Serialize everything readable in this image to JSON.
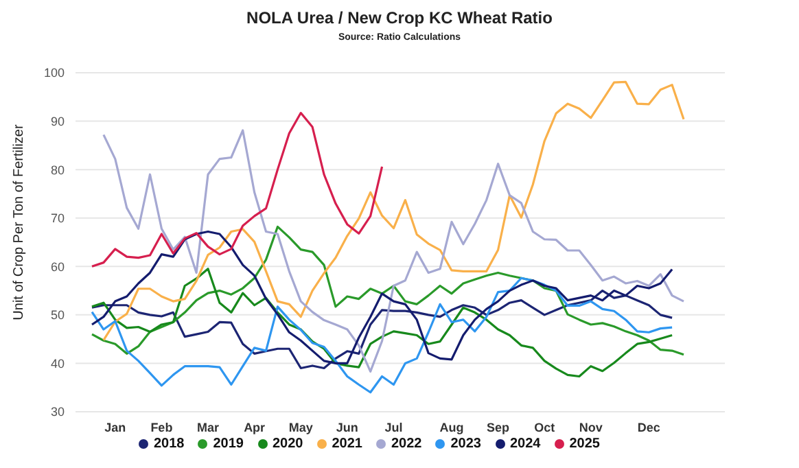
{
  "chart_data": {
    "type": "line",
    "title": "NOLA Urea / New Crop KC Wheat Ratio",
    "subtitle": "Source: Ratio Calculations",
    "ylabel": "Unit of Crop Per Ton of Fertilizer",
    "categories": [
      null,
      null,
      "Jan",
      null,
      null,
      null,
      "Feb",
      null,
      null,
      null,
      "Mar",
      null,
      null,
      null,
      "Apr",
      null,
      null,
      null,
      "May",
      null,
      null,
      null,
      "Jun",
      null,
      null,
      null,
      "Jul",
      null,
      null,
      null,
      null,
      "Aug",
      null,
      null,
      null,
      "Sep",
      null,
      null,
      null,
      "Oct",
      null,
      null,
      null,
      "Nov",
      null,
      null,
      null,
      null,
      "Dec",
      null,
      null,
      null
    ],
    "ylim": [
      30,
      100
    ],
    "yticks": [
      30,
      40,
      50,
      60,
      70,
      80,
      90,
      100
    ],
    "grid": "y",
    "legend": "bottom",
    "marker": "none",
    "line_style": "solid",
    "series": [
      {
        "name": "2018",
        "color": "#1c2573",
        "values": [
          51.5,
          52,
          52,
          52,
          50.5,
          50,
          49.7,
          50.5,
          45.5,
          46,
          46.5,
          48.5,
          48.4,
          44,
          42,
          42.5,
          43,
          43,
          39,
          39.5,
          39,
          41,
          42.5,
          42,
          48,
          51,
          50.8,
          50.8,
          50.5,
          50,
          49.6,
          51,
          52,
          51.5,
          50,
          51,
          52.5,
          53,
          51.5,
          50,
          51,
          52,
          52.5,
          53,
          55,
          53.5,
          54,
          53,
          52,
          50,
          49.4,
          null
        ]
      },
      {
        "name": "2019",
        "color": "#2a9a2a",
        "values": [
          46,
          44.7,
          44,
          42,
          43.5,
          46.5,
          47.5,
          48.5,
          50.5,
          53,
          54.5,
          55,
          54.2,
          55.5,
          57.6,
          61.4,
          68.2,
          66,
          63.5,
          63,
          60.3,
          51.7,
          53.8,
          53.3,
          55.4,
          54.4,
          56,
          52.8,
          52.2,
          54,
          56,
          54.4,
          56.5,
          57.3,
          58.1,
          58.7,
          58.1,
          57.6,
          57.1,
          55.5,
          55,
          50.1,
          49,
          48,
          48.3,
          47.6,
          46.6,
          45.8,
          44.7,
          42.8,
          42.6,
          41.8
        ]
      },
      {
        "name": "2020",
        "color": "#17891c",
        "values": [
          51.7,
          52.5,
          49,
          47.3,
          47.5,
          46.5,
          48,
          48.5,
          56,
          57.5,
          59.5,
          52.5,
          50.5,
          54.5,
          52,
          53.5,
          50.5,
          48,
          47,
          44.5,
          43,
          40,
          39.5,
          39.2,
          44,
          45.5,
          46.6,
          46.2,
          45.8,
          44,
          44.5,
          48,
          51.5,
          50.5,
          49,
          47,
          45.8,
          43.7,
          43.2,
          40.5,
          38.9,
          37.6,
          37.3,
          39.4,
          38.4,
          40.1,
          42.1,
          44,
          44.4,
          45.1,
          45.8,
          null
        ]
      },
      {
        "name": "2021",
        "color": "#f9b04a",
        "values": [
          null,
          44.8,
          48.6,
          50.2,
          55.4,
          55.4,
          53.8,
          52.8,
          53.3,
          57,
          62.4,
          63.9,
          67.2,
          67.7,
          65.1,
          59,
          52.8,
          52.2,
          49.6,
          55,
          58.6,
          61.8,
          66.3,
          69.9,
          75.3,
          70.5,
          67.9,
          73.7,
          66.6,
          64.7,
          63.4,
          59.2,
          59,
          59,
          59,
          63.4,
          74.7,
          70.1,
          76.9,
          85.9,
          91.6,
          93.6,
          92.6,
          90.7,
          94.3,
          98,
          98.1,
          93.6,
          93.5,
          96.5,
          97.5,
          90.4
        ]
      },
      {
        "name": "2022",
        "color": "#a5a8d2",
        "values": [
          null,
          87.2,
          82.2,
          72.1,
          67.8,
          79,
          67.8,
          63.5,
          66.1,
          58.7,
          79,
          82.2,
          82.5,
          88.1,
          75.3,
          67.2,
          66.7,
          59,
          52.8,
          50.6,
          48.9,
          48,
          47,
          43.7,
          38.3,
          44.6,
          56,
          57.1,
          63,
          58.7,
          59.5,
          69.2,
          64.6,
          68.8,
          73.7,
          81.2,
          74.7,
          73.1,
          67.2,
          65.6,
          65.5,
          63.3,
          63.3,
          60.3,
          57.1,
          57.9,
          56.5,
          57,
          56,
          58.4,
          54,
          52.8
        ]
      },
      {
        "name": "2023",
        "color": "#2e96f0",
        "values": [
          50.6,
          47,
          48.7,
          42.6,
          40.5,
          38,
          35.4,
          37.6,
          39.4,
          39.4,
          39.4,
          39.2,
          35.6,
          39.4,
          43.2,
          42.6,
          51.7,
          49,
          46.9,
          44.2,
          43.4,
          40.5,
          37.3,
          35.6,
          34,
          37.3,
          35.6,
          40,
          41,
          46.4,
          52.2,
          48.5,
          49,
          46.6,
          49.6,
          54.7,
          55,
          57.6,
          57.1,
          56.2,
          55,
          51.9,
          51.9,
          52.8,
          51.2,
          50.8,
          49,
          46.6,
          46.4,
          47.2,
          47.4,
          null
        ]
      },
      {
        "name": "2024",
        "color": "#141c6e",
        "values": [
          48,
          49.6,
          52.8,
          53.8,
          56.5,
          58.7,
          62.5,
          62,
          65.6,
          66.7,
          67.2,
          66.7,
          64,
          60.3,
          58.1,
          53.3,
          50.1,
          46.4,
          44.7,
          42.6,
          40.5,
          40,
          40,
          45.3,
          49.6,
          54.4,
          52.8,
          52.2,
          49,
          42.1,
          41,
          40.8,
          45.8,
          49,
          51.2,
          52.8,
          55,
          56.2,
          57.1,
          56,
          55.5,
          53,
          53.5,
          54,
          53,
          55,
          54,
          56,
          55.5,
          56.5,
          59.4,
          null
        ]
      },
      {
        "name": "2025",
        "color": "#d61f4e",
        "values": [
          60,
          60.8,
          63.6,
          62,
          61.8,
          62.3,
          66.7,
          62.7,
          65.8,
          66.9,
          64.1,
          62.5,
          63.6,
          68.4,
          70.4,
          72,
          80,
          87.5,
          91.7,
          88.8,
          79,
          73,
          68.7,
          66.8,
          70.4,
          80.6,
          null,
          null,
          null,
          null,
          null,
          null,
          null,
          null,
          null,
          null,
          null,
          null,
          null,
          null,
          null,
          null,
          null,
          null,
          null,
          null,
          null,
          null,
          null,
          null,
          null,
          null
        ]
      }
    ]
  }
}
